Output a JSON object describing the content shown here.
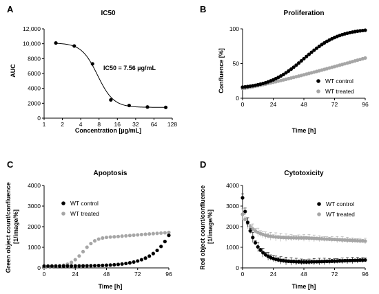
{
  "chart_data": [
    {
      "panel": "A",
      "type": "scatter",
      "title": "IC50",
      "xlabel": "Concentration [µg/mL]",
      "ylabel": "AUC",
      "xscale": "log2",
      "xlim": [
        1,
        128
      ],
      "ylim": [
        0,
        12000
      ],
      "xticks": [
        1,
        2,
        4,
        8,
        16,
        32,
        64,
        128
      ],
      "yticks": [
        0,
        2000,
        4000,
        6000,
        8000,
        10000,
        12000
      ],
      "ytick_labels": [
        "0",
        "2000",
        "4000",
        "6000",
        "8000",
        "10,000",
        "12,000"
      ],
      "annotation": "IC50 = 7.56 µg/mL",
      "points": {
        "x": [
          1.56,
          3.13,
          6.25,
          12.5,
          25,
          50,
          100
        ],
        "y": [
          10100,
          9700,
          7300,
          2450,
          1700,
          1500,
          1450
        ]
      },
      "fit": {
        "top": 10100,
        "bottom": 1450,
        "ic50": 7.56,
        "hill": 3.3
      }
    },
    {
      "panel": "B",
      "type": "line",
      "title": "Proliferation",
      "xlabel": "Time [h]",
      "ylabel": "Confluence [%]",
      "xlim": [
        0,
        96
      ],
      "ylim": [
        0,
        100
      ],
      "xticks": [
        0,
        24,
        48,
        72,
        96
      ],
      "yticks": [
        0,
        50,
        100
      ],
      "legend_position": "bottom-right",
      "series": [
        {
          "name": "WT control",
          "color": "#000000",
          "model": "logistic",
          "y0": 16,
          "ymax": 98,
          "mid": 48,
          "rate": 0.072
        },
        {
          "name": "WT treated",
          "color": "#a6a6a6",
          "model": "poly",
          "y0": 14,
          "y96": 58,
          "power": 1.15
        }
      ]
    },
    {
      "panel": "C",
      "type": "line",
      "title": "Apoptosis",
      "xlabel": "Time [h]",
      "ylabel": "Green object count/confluence [1/image/%]",
      "xlim": [
        0,
        96
      ],
      "ylim": [
        0,
        4000
      ],
      "xticks": [
        0,
        24,
        48,
        72,
        96
      ],
      "yticks": [
        0,
        1000,
        2000,
        3000,
        4000
      ],
      "legend_position": "top-left",
      "series": [
        {
          "name": "WT control",
          "color": "#000000",
          "model": "exp",
          "y0": 90,
          "y96": 1580,
          "k": 0.075
        },
        {
          "name": "WT treated",
          "color": "#a6a6a6",
          "model": "sigmoid-drift",
          "y0": 60,
          "plateau": 1520,
          "mid": 30,
          "rate": 0.2,
          "tail": 1720
        }
      ]
    },
    {
      "panel": "D",
      "type": "line",
      "title": "Cytotoxicity",
      "xlabel": "Time [h]",
      "ylabel": "Red object count/confluence [1/image/%]",
      "xlim": [
        0,
        96
      ],
      "ylim": [
        0,
        4000
      ],
      "xticks": [
        0,
        24,
        48,
        72,
        96
      ],
      "yticks": [
        0,
        1000,
        2000,
        3000,
        4000
      ],
      "legend_position": "top-right",
      "error_bars": true,
      "series": [
        {
          "name": "WT control",
          "color": "#000000",
          "model": "decay",
          "y0": 3400,
          "floor": 280,
          "k": 0.12,
          "late": 450,
          "err": 280
        },
        {
          "name": "WT treated",
          "color": "#a6a6a6",
          "model": "decay",
          "y0": 2600,
          "floor": 1450,
          "k": 0.12,
          "late": 1200,
          "err": 280
        }
      ]
    }
  ]
}
